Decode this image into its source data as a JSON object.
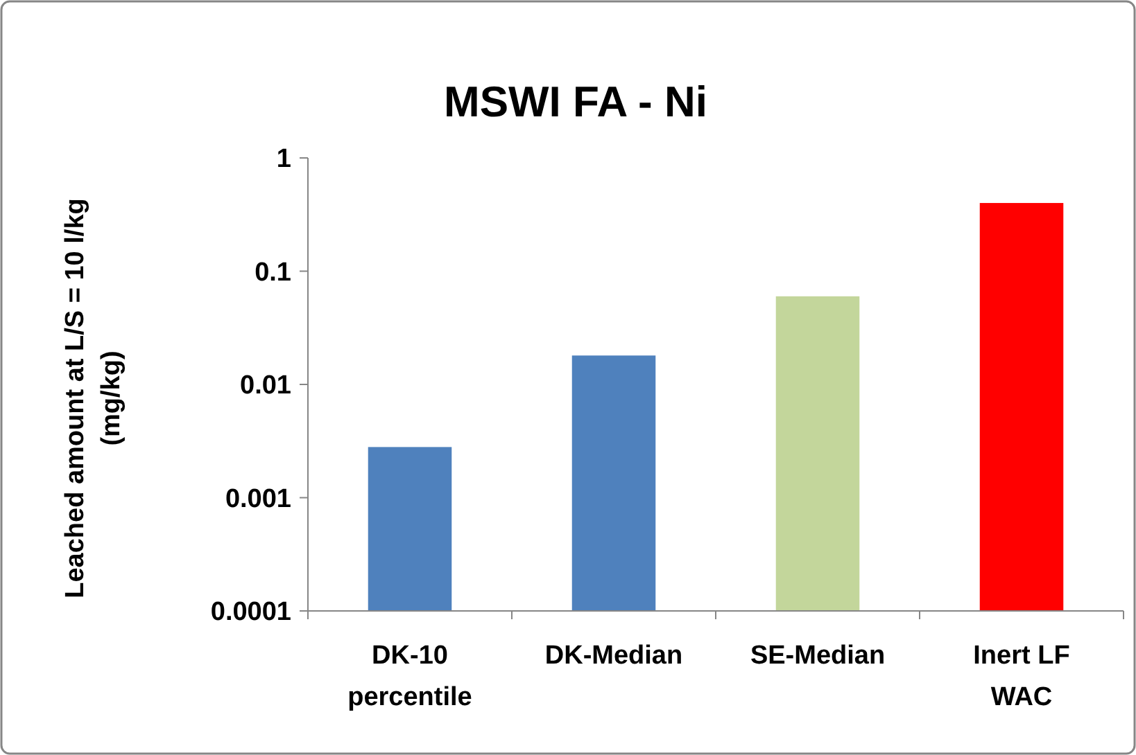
{
  "chart_data": {
    "type": "bar",
    "title": "MSWI FA - Ni",
    "ylabel": "Leached amount at L/S = 10 l/kg (mg/kg)",
    "categories": [
      "DK-10 percentile",
      "DK-Median",
      "SE-Median",
      "Inert LF WAC"
    ],
    "values": [
      0.0028,
      0.018,
      0.06,
      0.4
    ],
    "colors": [
      "#4f81bd",
      "#4f81bd",
      "#c3d69b",
      "#ff0000"
    ],
    "log": true,
    "ylim": [
      0.0001,
      1
    ],
    "yticks": [
      {
        "value": 0.0001,
        "label": "0.0001"
      },
      0.001,
      0.01,
      0.1,
      1
    ],
    "grid": false
  }
}
